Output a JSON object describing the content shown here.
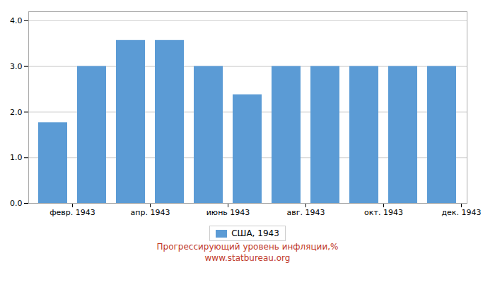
{
  "chart_data": {
    "type": "bar",
    "title": "Прогрессирующий уровень инфляции,%",
    "subtitle": "www.statbureau.org",
    "categories": [
      "февр. 1943",
      null,
      "апр. 1943",
      null,
      "июнь 1943",
      null,
      "авг. 1943",
      null,
      "окт. 1943",
      null,
      "дек. 1943"
    ],
    "series": [
      {
        "name": "США, 1943",
        "color": "#5b9bd5",
        "values": [
          1.77,
          3.0,
          3.57,
          3.57,
          3.0,
          2.38,
          3.0,
          3.0,
          3.0,
          3.0,
          3.0
        ]
      }
    ],
    "ylim": [
      0,
      4.2
    ],
    "yticks": [
      0,
      1,
      2,
      3,
      4
    ],
    "grid": true,
    "legend": "bottom"
  }
}
